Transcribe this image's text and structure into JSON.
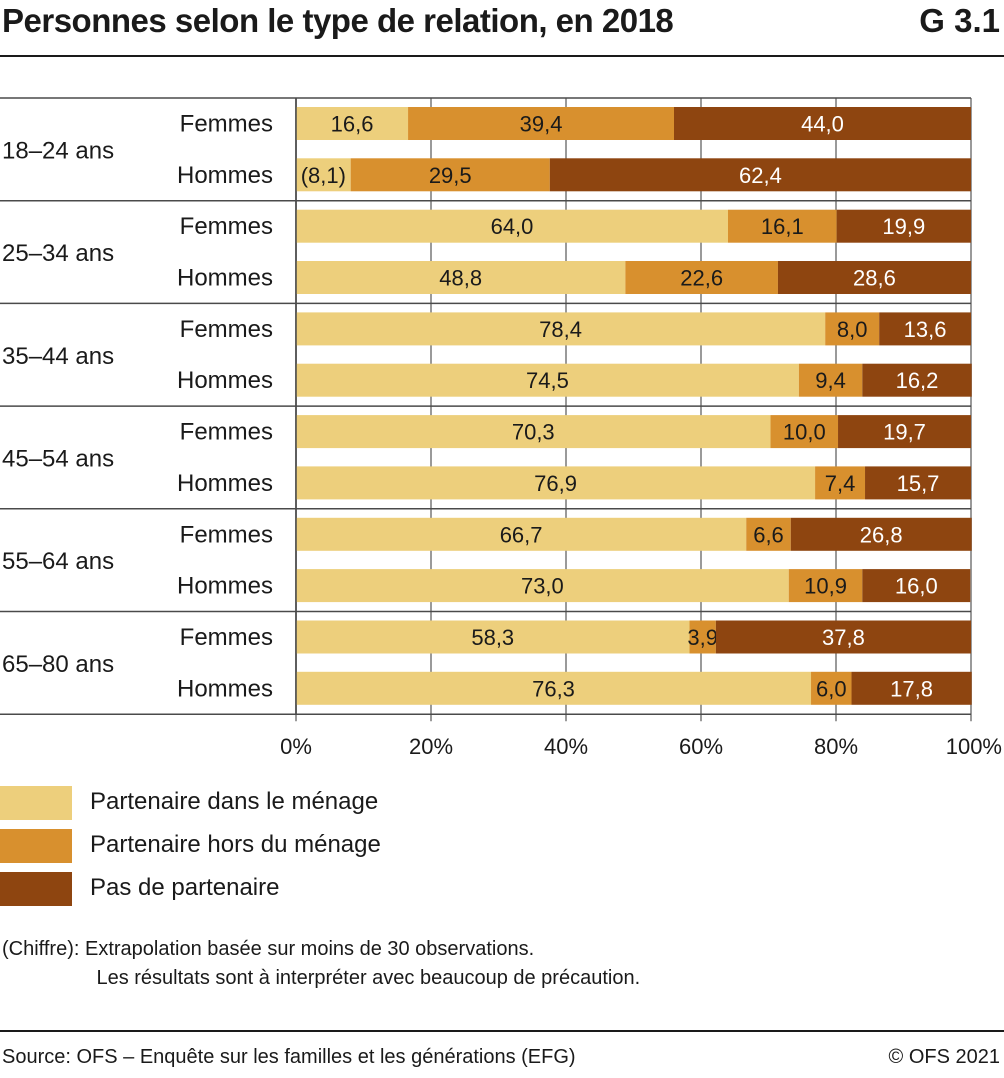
{
  "header": {
    "title": "Personnes selon le type de relation, en 2018",
    "figure_id": "G 3.1"
  },
  "chart_data": {
    "type": "bar",
    "orientation": "horizontal",
    "stacked": true,
    "groups": [
      "18–24 ans",
      "25–34 ans",
      "35–44 ans",
      "45–54 ans",
      "55–64 ans",
      "65–80 ans"
    ],
    "subcategories": [
      "Femmes",
      "Hommes"
    ],
    "series": [
      {
        "name": "Partenaire dans le ménage",
        "color": "#EDCF7C",
        "values": [
          16.6,
          8.1,
          64.0,
          48.8,
          78.4,
          74.5,
          70.3,
          76.9,
          66.7,
          73.0,
          58.3,
          76.3
        ],
        "labels": [
          "16,6",
          "(8,1)",
          "64,0",
          "48,8",
          "78,4",
          "74,5",
          "70,3",
          "76,9",
          "66,7",
          "73,0",
          "58,3",
          "76,3"
        ]
      },
      {
        "name": "Partenaire hors du ménage",
        "color": "#D8902E",
        "values": [
          39.4,
          29.5,
          16.1,
          22.6,
          8.0,
          9.4,
          10.0,
          7.4,
          6.6,
          10.9,
          3.9,
          6.0
        ],
        "labels": [
          "39,4",
          "29,5",
          "16,1",
          "22,6",
          "8,0",
          "9,4",
          "10,0",
          "7,4",
          "6,6",
          "10,9",
          "3,9",
          "6,0"
        ]
      },
      {
        "name": "Pas de partenaire",
        "color": "#8E4510",
        "values": [
          44.0,
          62.4,
          19.9,
          28.6,
          13.6,
          16.2,
          19.7,
          15.7,
          26.8,
          16.0,
          37.8,
          17.8
        ],
        "labels": [
          "44,0",
          "62,4",
          "19,9",
          "28,6",
          "13,6",
          "16,2",
          "19,7",
          "15,7",
          "26,8",
          "16,0",
          "37,8",
          "17,8"
        ]
      }
    ],
    "xlim": [
      0,
      100
    ],
    "x_ticks": [
      "0%",
      "20%",
      "40%",
      "60%",
      "80%",
      "100%"
    ],
    "grid": true,
    "legend_position": "bottom-left"
  },
  "notes": {
    "text": "(Chiffre): Extrapolation basée sur moins de 30 observations.\n                 Les résultats sont à interpréter avec beaucoup de précaution."
  },
  "footer": {
    "source": "Source: OFS – Enquête sur les familles et les générations (EFG)",
    "copyright": "© OFS 2021"
  }
}
